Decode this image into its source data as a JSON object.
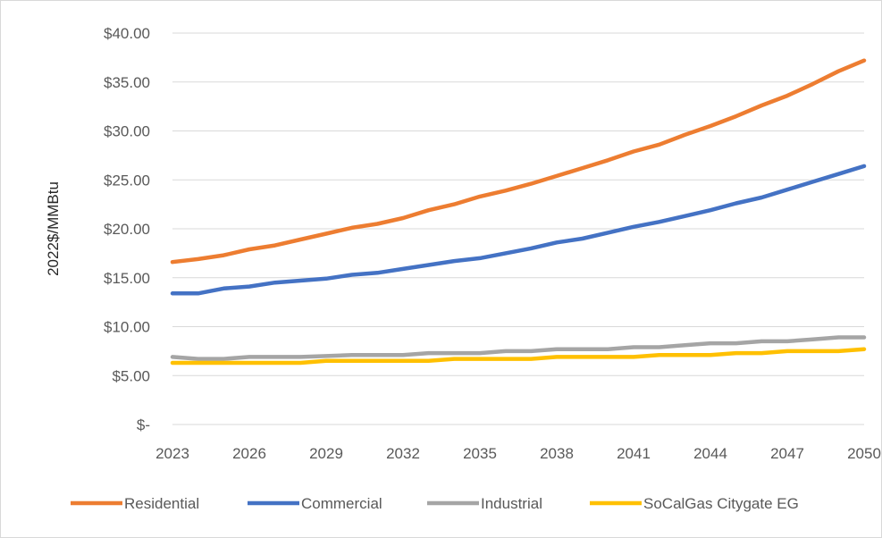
{
  "chart_data": {
    "type": "line",
    "title": "",
    "xlabel": "",
    "ylabel": "2022$/MMBtu",
    "x": [
      2023,
      2024,
      2025,
      2026,
      2027,
      2028,
      2029,
      2030,
      2031,
      2032,
      2033,
      2034,
      2035,
      2036,
      2037,
      2038,
      2039,
      2040,
      2041,
      2042,
      2043,
      2044,
      2045,
      2046,
      2047,
      2048,
      2049,
      2050
    ],
    "x_tick_labels": [
      "2023",
      "2026",
      "2029",
      "2032",
      "2035",
      "2038",
      "2041",
      "2044",
      "2047",
      "2050"
    ],
    "y_tick_labels": [
      "$-",
      "$5.00",
      "$10.00",
      "$15.00",
      "$20.00",
      "$25.00",
      "$30.00",
      "$35.00",
      "$40.00"
    ],
    "ylim": [
      0,
      40
    ],
    "y_major_step": 5,
    "grid": true,
    "legend_position": "bottom",
    "series": [
      {
        "name": "Residential",
        "color": "#ED7D31",
        "values": [
          16.6,
          16.9,
          17.3,
          17.9,
          18.3,
          18.9,
          19.5,
          20.1,
          20.5,
          21.1,
          21.9,
          22.5,
          23.3,
          23.9,
          24.6,
          25.4,
          26.2,
          27.0,
          27.9,
          28.6,
          29.6,
          30.5,
          31.5,
          32.6,
          33.6,
          34.8,
          36.1,
          37.2
        ]
      },
      {
        "name": "Commercial",
        "color": "#4472C4",
        "values": [
          13.4,
          13.4,
          13.9,
          14.1,
          14.5,
          14.7,
          14.9,
          15.3,
          15.5,
          15.9,
          16.3,
          16.7,
          17.0,
          17.5,
          18.0,
          18.6,
          19.0,
          19.6,
          20.2,
          20.7,
          21.3,
          21.9,
          22.6,
          23.2,
          24.0,
          24.8,
          25.6,
          26.4
        ]
      },
      {
        "name": "Industrial",
        "color": "#A5A5A5",
        "values": [
          6.9,
          6.7,
          6.7,
          6.9,
          6.9,
          6.9,
          7.0,
          7.1,
          7.1,
          7.1,
          7.3,
          7.3,
          7.3,
          7.5,
          7.5,
          7.7,
          7.7,
          7.7,
          7.9,
          7.9,
          8.1,
          8.3,
          8.3,
          8.5,
          8.5,
          8.7,
          8.9,
          8.9
        ]
      },
      {
        "name": "SoCalGas Citygate EG",
        "color": "#FFC000",
        "values": [
          6.3,
          6.3,
          6.3,
          6.3,
          6.3,
          6.3,
          6.5,
          6.5,
          6.5,
          6.5,
          6.5,
          6.7,
          6.7,
          6.7,
          6.7,
          6.9,
          6.9,
          6.9,
          6.9,
          7.1,
          7.1,
          7.1,
          7.3,
          7.3,
          7.5,
          7.5,
          7.5,
          7.7
        ]
      }
    ]
  }
}
